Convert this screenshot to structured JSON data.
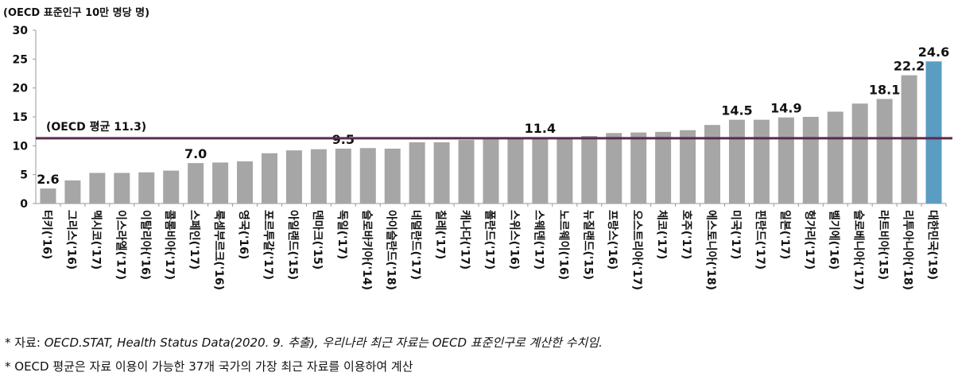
{
  "chart_data": {
    "type": "bar",
    "unit_label": "(OECD 표준인구 10만 명당 명)",
    "ylim": [
      0,
      30
    ],
    "yticks": [
      0,
      5,
      10,
      15,
      20,
      25,
      30
    ],
    "categories": [
      "터키('16)",
      "그리스('16)",
      "멕시코('17)",
      "이스라엘('17)",
      "이탈리아('16)",
      "콜롬비아('17)",
      "스페인('17)",
      "룩셈부르크('16)",
      "영국('16)",
      "포르투갈('17)",
      "아일랜드('15)",
      "덴마크('15)",
      "독일('17)",
      "슬로바키아('14)",
      "아이슬란드('18)",
      "네덜란드('17)",
      "칠레('17)",
      "캐나다('17)",
      "폴란드('17)",
      "스위스('16)",
      "스웨덴('17)",
      "노르웨이('16)",
      "뉴질랜드('15)",
      "프랑스('16)",
      "오스트리아('17)",
      "체코('17)",
      "호주('17)",
      "에스토니아('18)",
      "미국('17)",
      "핀란드('17)",
      "일본('17)",
      "헝가리('17)",
      "벨기에('16)",
      "슬로베니아('17)",
      "라트비아('15)",
      "리투아니아('18)",
      "대한민국('19)"
    ],
    "values": [
      2.6,
      4.0,
      5.3,
      5.3,
      5.4,
      5.7,
      7.0,
      7.1,
      7.3,
      8.7,
      9.2,
      9.4,
      9.5,
      9.6,
      9.5,
      10.6,
      10.6,
      11.0,
      11.1,
      11.2,
      11.4,
      11.4,
      11.7,
      12.2,
      12.3,
      12.4,
      12.7,
      13.6,
      14.5,
      14.5,
      14.9,
      15.0,
      15.9,
      17.3,
      18.1,
      22.2,
      24.6
    ],
    "data_labels": {
      "0": "2.6",
      "6": "7.0",
      "12": "9.5",
      "20": "11.4",
      "28": "14.5",
      "30": "14.9",
      "34": "18.1",
      "35": "22.2",
      "36": "24.6"
    },
    "reference_line": {
      "value": 11.3,
      "label": "(OECD 평균 11.3)",
      "color": "#5a2b4c"
    },
    "colors": {
      "default": "#a6a6a6",
      "highlight": "#5b9dc2"
    },
    "highlight_index": 36,
    "grid": false
  },
  "notes": {
    "line1_prefix": "* 자료: ",
    "line1_source": "OECD.STAT, Health Status Data(2020. 9. 추출), 우리나라 최근 자료는 OECD 표준인구로 계산한 수치임.",
    "line2": "* OECD 평균은 자료 이용이 가능한 37개 국가의 가장 최근 자료를 이용하여 계산"
  }
}
